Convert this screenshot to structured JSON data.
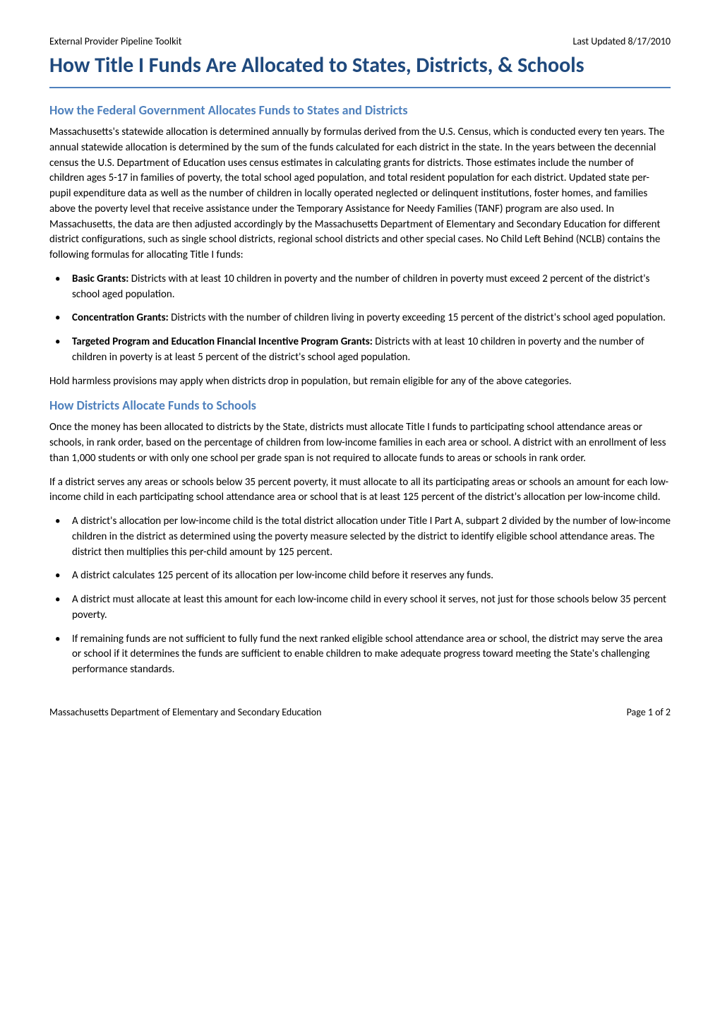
{
  "header": {
    "left": "External Provider Pipeline Toolkit",
    "right": "Last Updated 8/17/2010"
  },
  "title": "How Title I Funds Are Allocated to States, Districts, & Schools",
  "section1": {
    "heading": "How the Federal Government Allocates Funds to States and Districts",
    "para1": "Massachusetts's statewide allocation is determined annually by formulas derived from the U.S. Census, which is conducted every ten years. The annual statewide allocation is determined by the sum of the funds calculated for each district in the state. In the years between the decennial census the U.S. Department of Education uses census estimates in calculating grants for districts. Those estimates include the number of children ages 5-17 in families of poverty, the total school aged population, and total resident population for each district. Updated state per-pupil expenditure data as well as the number of children in locally operated neglected or delinquent institutions, foster homes, and families above the poverty level that receive assistance under the Temporary Assistance for Needy Families (TANF) program are also used. In Massachusetts, the data are then adjusted accordingly by the Massachusetts Department of Elementary and Secondary Education for different district configurations, such as single school districts, regional school districts and other special cases. No Child Left Behind (NCLB) contains the following formulas for allocating Title I funds:",
    "bullets": [
      {
        "bold": "Basic Grants:",
        "text": " Districts with at least 10 children in poverty and the number of children in poverty must exceed 2 percent of the district's school aged population."
      },
      {
        "bold": "Concentration Grants:",
        "text": " Districts with the number of children living in poverty exceeding 15 percent of the district's school aged population."
      },
      {
        "bold": "Targeted Program and Education Financial Incentive Program Grants:",
        "text": " Districts with at least 10 children in poverty and the number of children in poverty is at least 5 percent of the district's school aged population."
      }
    ],
    "para2": "Hold harmless provisions may apply when districts drop in population, but remain eligible for any of the above categories."
  },
  "section2": {
    "heading": "How Districts Allocate Funds to Schools",
    "para1": "Once the money has been allocated to districts by the State, districts must allocate Title I funds to participating school attendance areas or schools, in rank order, based on the percentage of children from low-income families in each area or school. A district with an enrollment of less than 1,000 students or with only one school per grade span is not required to allocate funds to areas or schools in rank order.",
    "para2": "If a district serves any areas or schools below 35 percent poverty, it must allocate to all its participating areas or schools an amount for each low-income child in each participating school attendance area or school that is at least 125 percent of the district's allocation per low-income child.",
    "bullets": [
      "A district's allocation per low-income child is the total district allocation under Title I Part A, subpart 2 divided by the number of low-income children in the district as determined using the poverty measure selected by the district to identify eligible school attendance areas. The district then multiplies this per-child amount by 125 percent.",
      "A district calculates 125 percent of its allocation per low-income child before it reserves any funds.",
      "A district must allocate at least this amount for each low-income child in every school it serves, not just for those schools below 35 percent poverty.",
      "If remaining funds are not sufficient to fully fund the next ranked eligible school attendance area or school, the district may serve the area or school if it determines the funds are sufficient to enable children to make adequate progress toward meeting the State's challenging performance standards."
    ]
  },
  "footer": {
    "left": "Massachusetts Department of Elementary and Secondary Education",
    "right": "Page 1 of 2"
  },
  "colors": {
    "title": "#1f497d",
    "heading": "#4f81bd",
    "underline": "#4f81bd",
    "text": "#000000",
    "background": "#ffffff"
  },
  "typography": {
    "body_fontsize": 15,
    "title_fontsize": 30,
    "heading_fontsize": 18,
    "header_fontsize": 14
  }
}
